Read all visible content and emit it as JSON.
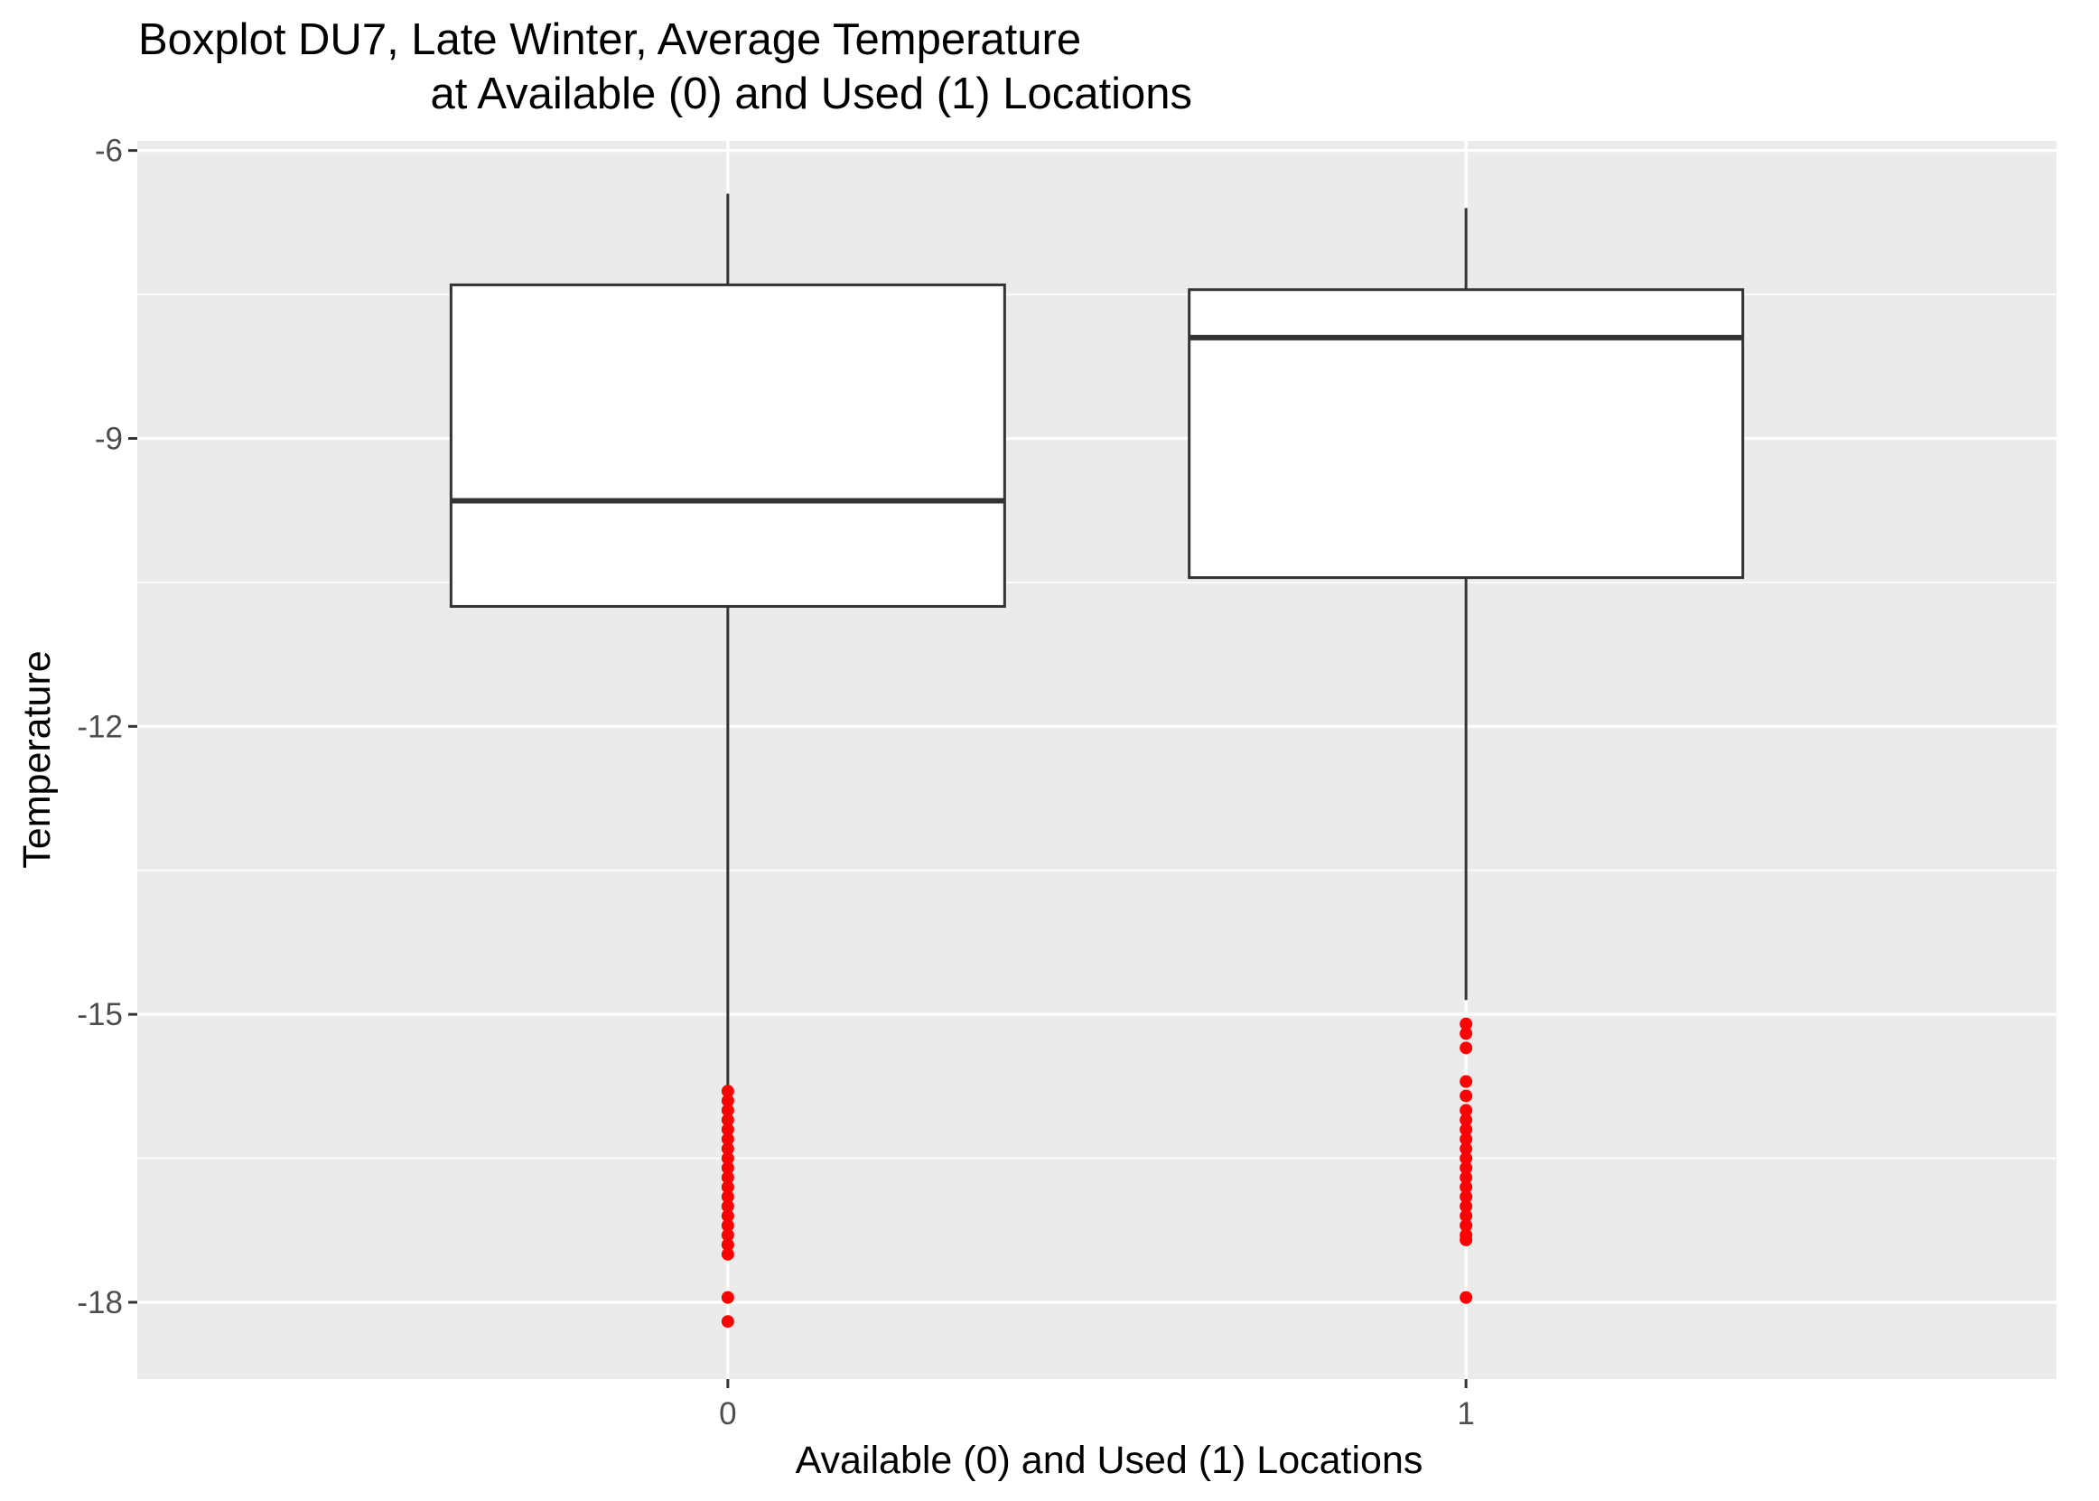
{
  "chart_data": {
    "type": "boxplot",
    "title_lines": [
      "Boxplot DU7, Late Winter, Average Temperature",
      "at Available (0) and Used (1) Locations"
    ],
    "xlabel": "Available (0) and Used (1) Locations",
    "ylabel": "Temperature",
    "categories": [
      "0",
      "1"
    ],
    "ylim": [
      -18.8,
      -5.9
    ],
    "yticks": [
      -6,
      -9,
      -12,
      -15,
      -18
    ],
    "ytick_labels": [
      "-6",
      "-9",
      "-12",
      "-15",
      "-18"
    ],
    "grid": true,
    "legend": "none",
    "boxes": [
      {
        "category": "0",
        "whisker_low": -15.75,
        "q1": -10.75,
        "median": -9.65,
        "q3": -7.4,
        "whisker_high": -6.45,
        "outliers": [
          -15.8,
          -15.9,
          -16.0,
          -16.1,
          -16.2,
          -16.3,
          -16.4,
          -16.5,
          -16.6,
          -16.7,
          -16.8,
          -16.9,
          -17.0,
          -17.1,
          -17.2,
          -17.3,
          -17.4,
          -17.5,
          -17.95,
          -18.2
        ]
      },
      {
        "category": "1",
        "whisker_low": -14.85,
        "q1": -10.45,
        "median": -7.95,
        "q3": -7.45,
        "whisker_high": -6.6,
        "outliers": [
          -15.1,
          -15.2,
          -15.35,
          -15.7,
          -15.85,
          -16.0,
          -16.1,
          -16.2,
          -16.3,
          -16.4,
          -16.5,
          -16.6,
          -16.7,
          -16.8,
          -16.9,
          -17.0,
          -17.1,
          -17.2,
          -17.3,
          -17.35,
          -17.95
        ]
      }
    ],
    "colors": {
      "panel_background": "#ebebeb",
      "grid_major": "#ffffff",
      "box_fill": "#ffffff",
      "box_line": "#333333",
      "outlier": "#ff0000"
    }
  }
}
